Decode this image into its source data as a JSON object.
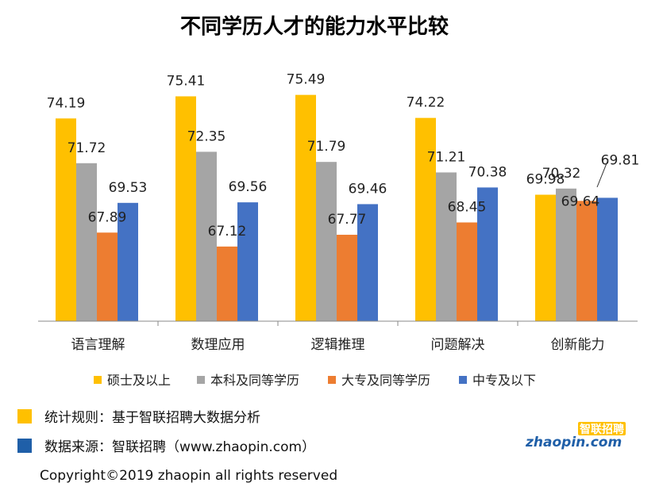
{
  "chart_data": {
    "type": "bar",
    "title": "不同学历人才的能力水平比较",
    "categories": [
      "语言理解",
      "数理应用",
      "逻辑推理",
      "问题解决",
      "创新能力"
    ],
    "series": [
      {
        "name": "硕士及以上",
        "color": "#FFC000",
        "values": [
          74.19,
          75.41,
          75.49,
          74.22,
          69.98
        ]
      },
      {
        "name": "本科及同等学历",
        "color": "#A5A5A5",
        "values": [
          71.72,
          72.35,
          71.79,
          71.21,
          70.32
        ]
      },
      {
        "name": "大专及同等学历",
        "color": "#ED7D31",
        "values": [
          67.89,
          67.12,
          67.77,
          68.45,
          69.64
        ]
      },
      {
        "name": "中专及以下",
        "color": "#4472C4",
        "values": [
          69.53,
          69.56,
          69.46,
          70.38,
          69.81
        ]
      }
    ],
    "value_labels": [
      [
        "74.19",
        "75.41",
        "75.49",
        "74.22",
        "69.98"
      ],
      [
        "71.72",
        "72.35",
        "71.79",
        "71.21",
        "70.32"
      ],
      [
        "67.89",
        "67.12",
        "67.77",
        "68.45",
        "69.64"
      ],
      [
        "69.53",
        "69.56",
        "69.46",
        "70.38",
        "69.81"
      ]
    ],
    "ylim": [
      63,
      76
    ],
    "grid": false,
    "legend_position": "bottom"
  },
  "footer": {
    "note1": "统计规则：基于智联招聘大数据分析",
    "note2": "数据来源：智联招聘（www.zhaopin.com）",
    "note1_color": "#FFC000",
    "note2_color": "#1F5FA8",
    "copyright": "Copyright©2019 zhaopin all rights reserved"
  },
  "logo": {
    "text_cn": "智联招聘",
    "text_en": "zhaopin.com"
  }
}
